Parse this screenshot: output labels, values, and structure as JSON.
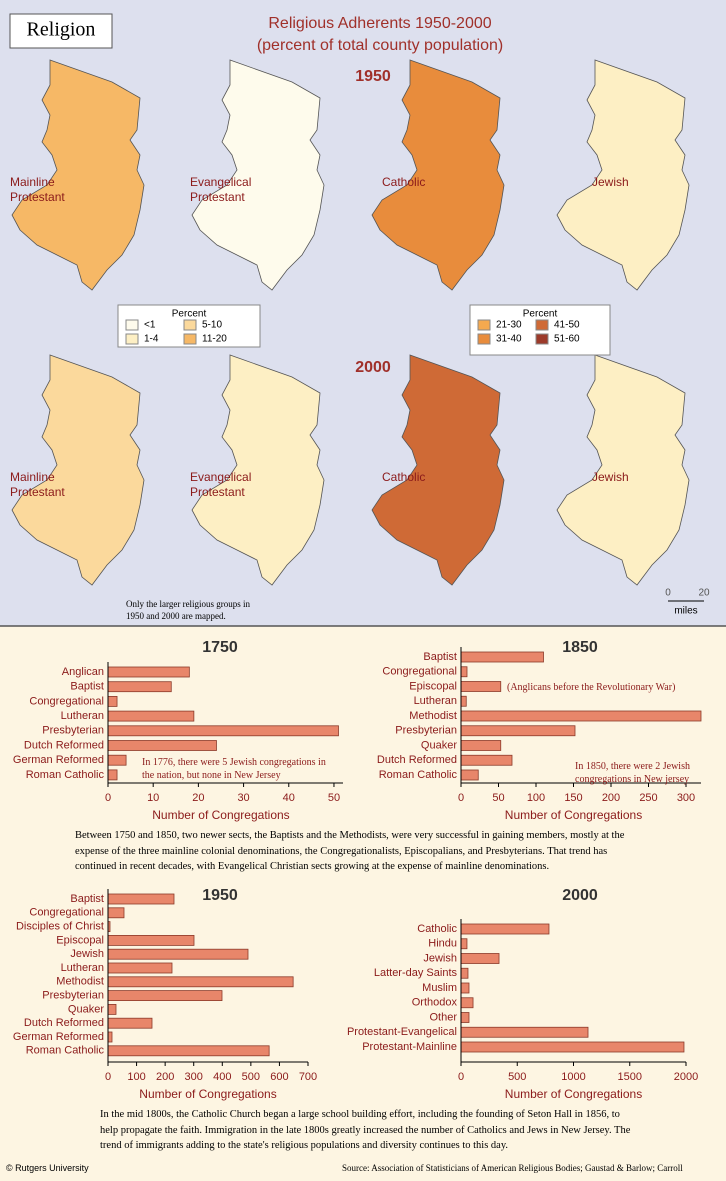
{
  "header": {
    "badge": "Religion",
    "title": "Religious Adherents 1950-2000",
    "subtitle": "(percent of total county population)"
  },
  "maps": {
    "years": [
      "1950",
      "2000"
    ],
    "groups": [
      "Mainline Protestant",
      "Evangelical Protestant",
      "Catholic",
      "Jewish"
    ],
    "legends": [
      {
        "title": "Percent",
        "classes": [
          {
            "label": "<1",
            "color": "#fefbec"
          },
          {
            "label": "1-4",
            "color": "#fdefc4"
          },
          {
            "label": "5-10",
            "color": "#fbd99c"
          },
          {
            "label": "11-20",
            "color": "#f6b866"
          }
        ]
      },
      {
        "title": "Percent",
        "classes": [
          {
            "label": "21-30",
            "color": "#f4a94f"
          },
          {
            "label": "31-40",
            "color": "#e88c3c"
          },
          {
            "label": "41-50",
            "color": "#cf6a36"
          },
          {
            "label": "51-60",
            "color": "#9c3a2a"
          }
        ]
      }
    ],
    "note": "Only the larger religious groups in 1950 and 2000 are mapped.",
    "scale": {
      "ticks": [
        "0",
        "20"
      ],
      "unit": "miles"
    }
  },
  "chart_data": [
    {
      "type": "bar",
      "orientation": "horizontal",
      "title": "1750",
      "xlabel": "Number of Congregations",
      "color": "#e8866a",
      "categories": [
        "Anglican",
        "Baptist",
        "Congregational",
        "Lutheran",
        "Presbyterian",
        "Dutch Reformed",
        "German Reformed",
        "Roman Catholic"
      ],
      "values": [
        18,
        14,
        2,
        19,
        51,
        24,
        4,
        2
      ],
      "xlim": [
        0,
        52
      ],
      "xticks": [
        0,
        10,
        20,
        30,
        40,
        50
      ],
      "annotations": [
        "In 1776, there were 5 Jewish congregations in the nation, but none in New Jersey"
      ]
    },
    {
      "type": "bar",
      "orientation": "horizontal",
      "title": "1850",
      "xlabel": "Number of Congregations",
      "color": "#e8866a",
      "categories": [
        "Baptist",
        "Congregational",
        "Episcopal",
        "Lutheran",
        "Methodist",
        "Presbyterian",
        "Quaker",
        "Dutch Reformed",
        "Roman Catholic"
      ],
      "values": [
        110,
        8,
        53,
        7,
        320,
        152,
        53,
        68,
        23
      ],
      "xlim": [
        0,
        320
      ],
      "xticks": [
        0,
        50,
        100,
        150,
        200,
        250,
        300
      ],
      "annotations": [
        "(Anglicans before the Revolutionary War)",
        "In 1850, there were 2 Jewish congregations in New jersey"
      ]
    },
    {
      "type": "bar",
      "orientation": "horizontal",
      "title": "1950",
      "xlabel": "Number of Congregations",
      "color": "#e8866a",
      "categories": [
        "Baptist",
        "Congregational",
        "Disciples of Christ",
        "Episcopal",
        "Jewish",
        "Lutheran",
        "Methodist",
        "Presbyterian",
        "Quaker",
        "Dutch Reformed",
        "German Reformed",
        "Roman Catholic"
      ],
      "values": [
        231,
        56,
        7,
        301,
        490,
        224,
        648,
        399,
        28,
        154,
        14,
        564
      ],
      "xlim": [
        0,
        700
      ],
      "xticks": [
        0,
        100,
        200,
        300,
        400,
        500,
        600,
        700
      ]
    },
    {
      "type": "bar",
      "orientation": "horizontal",
      "title": "2000",
      "xlabel": "Number of Congregations",
      "color": "#e8866a",
      "categories": [
        "Catholic",
        "Hindu",
        "Jewish",
        "Latter-day Saints",
        "Muslim",
        "Orthodox",
        "Other",
        "Protestant-Evangelical",
        "Protestant-Mainline"
      ],
      "values": [
        782,
        53,
        338,
        62,
        71,
        107,
        71,
        1129,
        1982
      ],
      "xlim": [
        0,
        2000
      ],
      "xticks": [
        0,
        500,
        1000,
        1500,
        2000
      ]
    }
  ],
  "paragraphs": [
    "Between 1750 and 1850, two newer sects, the Baptists and the Methodists, were very successful in gaining members, mostly at the expense of the three mainline colonial denominations, the Congregationalists, Episcopalians, and Presbyterians.  That trend has continued in recent decades, with Evangelical Christian sects growing at the expense of mainline denominations.",
    "In the mid 1800s, the Catholic Church began a large school building effort, including the founding of Seton Hall in 1856, to help propagate the faith.  Immigration in the late 1800s greatly increased the number of Catholics and Jews in New Jersey. The trend of immigrants adding to the state's religious populations and diversity continues to this day."
  ],
  "footer": {
    "credit": "© Rutgers University",
    "source": "Source: Association of Statisticians of American Religious Bodies; Gaustad & Barlow; Carroll"
  }
}
